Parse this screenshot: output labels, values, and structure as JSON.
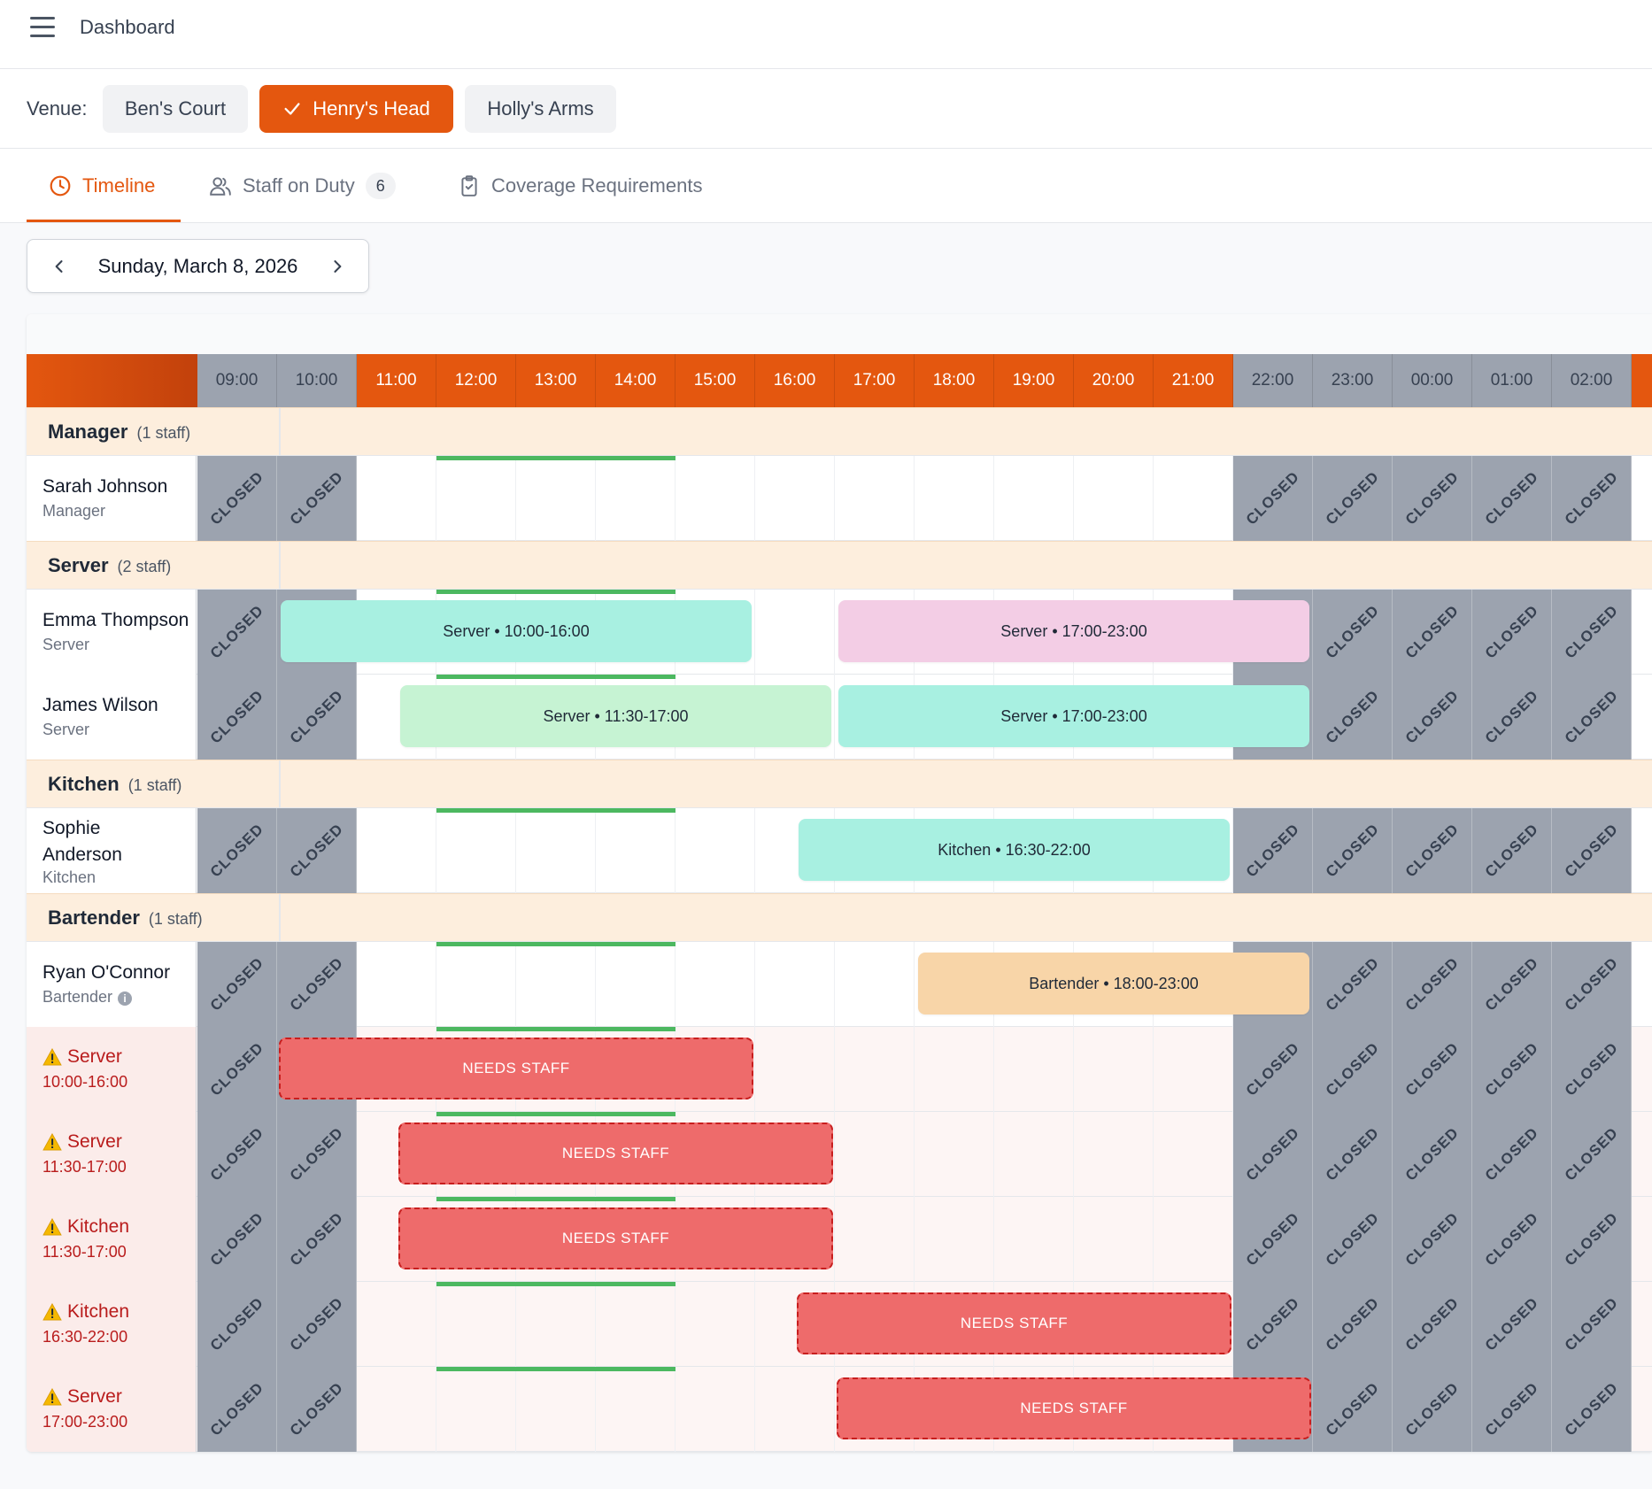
{
  "topbar": {
    "title": "Dashboard"
  },
  "venue": {
    "label": "Venue:",
    "options": [
      {
        "label": "Ben's Court",
        "selected": false
      },
      {
        "label": "Henry's Head",
        "selected": true
      },
      {
        "label": "Holly's Arms",
        "selected": false
      }
    ]
  },
  "tabs": [
    {
      "label": "Timeline",
      "icon": "clock-icon",
      "active": true
    },
    {
      "label": "Staff on Duty",
      "icon": "users-icon",
      "badge": "6"
    },
    {
      "label": "Coverage Requirements",
      "icon": "clipboard-check-icon"
    }
  ],
  "date": {
    "label": "Sunday, March 8, 2026"
  },
  "timeline": {
    "hours": [
      "09:00",
      "10:00",
      "11:00",
      "12:00",
      "13:00",
      "14:00",
      "15:00",
      "16:00",
      "17:00",
      "18:00",
      "19:00",
      "20:00",
      "21:00",
      "22:00",
      "23:00",
      "00:00",
      "01:00",
      "02:00"
    ],
    "open_hours": [
      "11:00",
      "12:00",
      "13:00",
      "14:00",
      "15:00",
      "16:00",
      "17:00",
      "18:00",
      "19:00",
      "20:00",
      "21:00"
    ],
    "closed_label": "CLOSED",
    "colors": {
      "accent": "#e4570f",
      "closed": "#9ca3af",
      "coverage_bar": "#4cb860",
      "needs_staff": "#ee6b6b"
    },
    "groups": [
      {
        "name": "Manager",
        "count": "(1 staff)"
      },
      {
        "name": "Server",
        "count": "(2 staff)"
      },
      {
        "name": "Kitchen",
        "count": "(1 staff)"
      },
      {
        "name": "Bartender",
        "count": "(1 staff)"
      }
    ],
    "staff": [
      {
        "name": "Sarah Johnson",
        "role": "Manager",
        "shifts": []
      },
      {
        "name": "Emma Thompson",
        "role": "Server",
        "shifts": [
          {
            "label": "Server • 10:00-16:00",
            "color": "#a8f0e1"
          },
          {
            "label": "Server • 17:00-23:00",
            "color": "#f3cde5"
          }
        ]
      },
      {
        "name": "James Wilson",
        "role": "Server",
        "shifts": [
          {
            "label": "Server • 11:30-17:00",
            "color": "#c6f3d3"
          },
          {
            "label": "Server • 17:00-23:00",
            "color": "#a8f0e1"
          }
        ]
      },
      {
        "name": "Sophie Anderson",
        "role": "Kitchen",
        "shifts": [
          {
            "label": "Kitchen • 16:30-22:00",
            "color": "#a8f0e1"
          }
        ]
      },
      {
        "name": "Ryan O'Connor",
        "role": "Bartender",
        "info": "i",
        "shifts": [
          {
            "label": "Bartender • 18:00-23:00",
            "color": "#f8d5a8"
          }
        ]
      }
    ],
    "uncovered": [
      {
        "role": "Server",
        "time": "10:00-16:00",
        "label": "NEEDS STAFF"
      },
      {
        "role": "Server",
        "time": "11:30-17:00",
        "label": "NEEDS STAFF"
      },
      {
        "role": "Kitchen",
        "time": "11:30-17:00",
        "label": "NEEDS STAFF"
      },
      {
        "role": "Kitchen",
        "time": "16:30-22:00",
        "label": "NEEDS STAFF"
      },
      {
        "role": "Server",
        "time": "17:00-23:00",
        "label": "NEEDS STAFF"
      }
    ]
  }
}
